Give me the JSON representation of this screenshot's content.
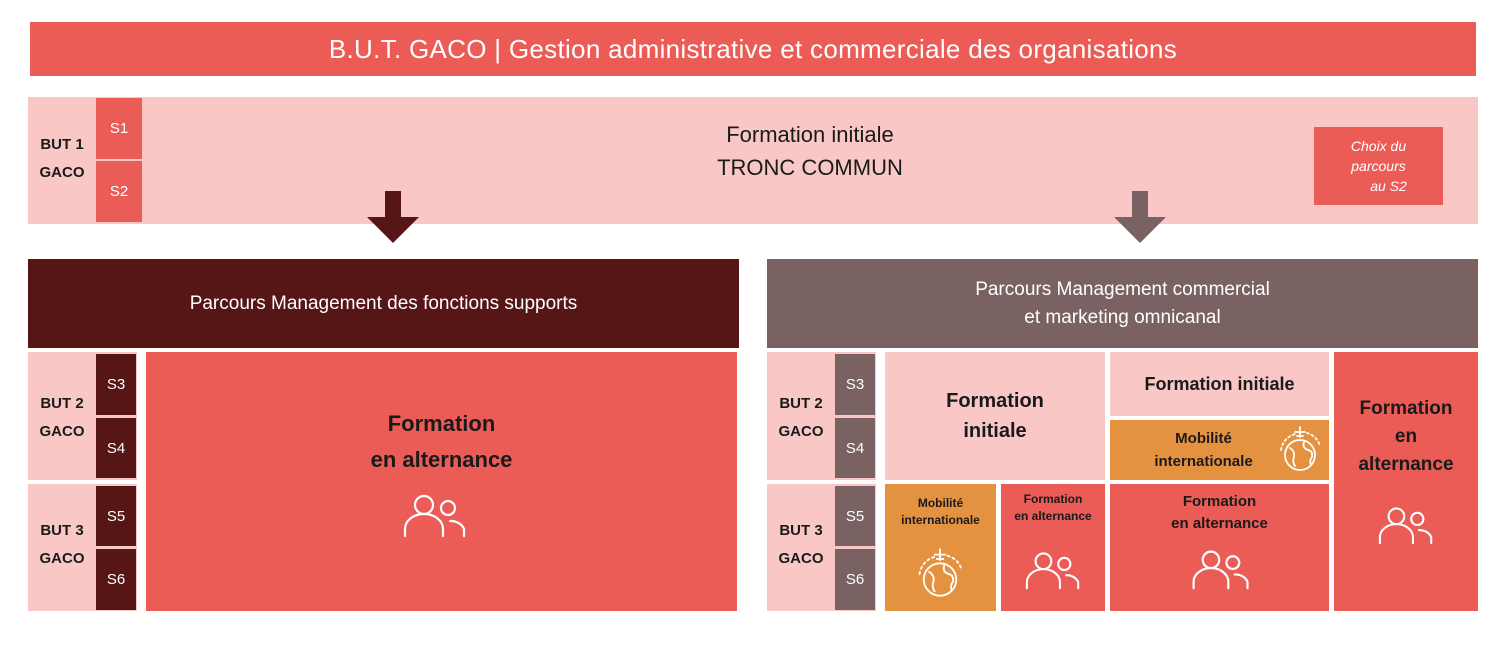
{
  "title": "B.U.T. GACO | Gestion administrative et commerciale des organisations",
  "but1": {
    "line1": "BUT 1",
    "line2": "GACO",
    "s1": "S1",
    "s2": "S2",
    "formation_line1": "Formation initiale",
    "formation_line2": "TRONC COMMUN",
    "choix_line1": "Choix du",
    "choix_line2": "parcours",
    "choix_line3": "au S2"
  },
  "left": {
    "header": "Parcours Management des fonctions supports",
    "but2": {
      "line1": "BUT 2",
      "line2": "GACO",
      "s3": "S3",
      "s4": "S4"
    },
    "but3": {
      "line1": "BUT 3",
      "line2": "GACO",
      "s5": "S5",
      "s6": "S6"
    },
    "formation_line1": "Formation",
    "formation_line2": "en alternance"
  },
  "right": {
    "header_line1": "Parcours Management commercial",
    "header_line2": "et marketing omnicanal",
    "but2": {
      "line1": "BUT 2",
      "line2": "GACO",
      "s3": "S3",
      "s4": "S4"
    },
    "but3": {
      "line1": "BUT 3",
      "line2": "GACO",
      "s5": "S5",
      "s6": "S6"
    },
    "col1_top_line1": "Formation",
    "col1_top_line2": "initiale",
    "col2_top": "Formation initiale",
    "col2_mob_line1": "Mobilité",
    "col2_mob_line2": "internationale",
    "col3_line1": "Formation",
    "col3_line2": "en",
    "col3_line3": "alternance",
    "b1_mob_line1": "Mobilité",
    "b1_mob_line2": "internationale",
    "b2_alt_line1": "Formation",
    "b2_alt_line2": "en alternance",
    "b3_alt_line1": "Formation",
    "b3_alt_line2": "en alternance"
  },
  "colors": {
    "coral": "#EB5C57",
    "pink": "#F8C7C6",
    "maroon": "#561616",
    "taupe": "#7B6262",
    "orange": "#E59240"
  },
  "icons": [
    "arrow-down-icon",
    "people-icon",
    "globe-plane-icon"
  ]
}
